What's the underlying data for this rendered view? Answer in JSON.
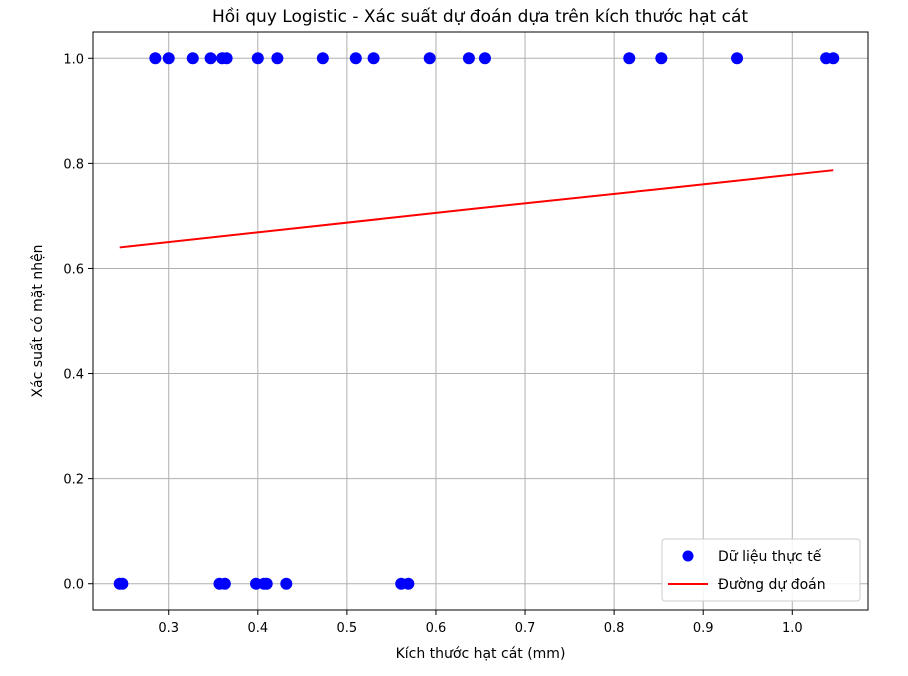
{
  "chart_data": {
    "type": "scatter",
    "title": "Hồi quy Logistic - Xác suất dự đoán dựa trên kích thước hạt cát",
    "xlabel": "Kích thước hạt cát (mm)",
    "ylabel": "Xác suất có mặt nhện",
    "xlim": [
      0.215,
      1.085
    ],
    "ylim": [
      -0.05,
      1.05
    ],
    "xticks": [
      "0.3",
      "0.4",
      "0.5",
      "0.6",
      "0.7",
      "0.8",
      "0.9",
      "1.0"
    ],
    "yticks": [
      "0.0",
      "0.2",
      "0.4",
      "0.6",
      "0.8",
      "1.0"
    ],
    "grid": true,
    "legend_position": "bottom-right",
    "series": [
      {
        "name": "Dữ liệu thực tế",
        "kind": "scatter",
        "color": "#0000ff",
        "points": [
          [
            0.245,
            0
          ],
          [
            0.248,
            0
          ],
          [
            0.357,
            0
          ],
          [
            0.363,
            0
          ],
          [
            0.398,
            0
          ],
          [
            0.407,
            0
          ],
          [
            0.41,
            0
          ],
          [
            0.432,
            0
          ],
          [
            0.561,
            0
          ],
          [
            0.569,
            0
          ],
          [
            0.285,
            1
          ],
          [
            0.3,
            1
          ],
          [
            0.327,
            1
          ],
          [
            0.347,
            1
          ],
          [
            0.36,
            1
          ],
          [
            0.365,
            1
          ],
          [
            0.4,
            1
          ],
          [
            0.422,
            1
          ],
          [
            0.473,
            1
          ],
          [
            0.51,
            1
          ],
          [
            0.53,
            1
          ],
          [
            0.593,
            1
          ],
          [
            0.637,
            1
          ],
          [
            0.655,
            1
          ],
          [
            0.817,
            1
          ],
          [
            0.853,
            1
          ],
          [
            0.938,
            1
          ],
          [
            1.038,
            1
          ],
          [
            1.046,
            1
          ]
        ]
      },
      {
        "name": "Đường dự đoán",
        "kind": "line",
        "color": "#ff0000",
        "x": [
          0.245,
          0.445,
          0.645,
          0.845,
          1.046
        ],
        "y": [
          0.64,
          0.677,
          0.714,
          0.75,
          0.787
        ]
      }
    ]
  }
}
